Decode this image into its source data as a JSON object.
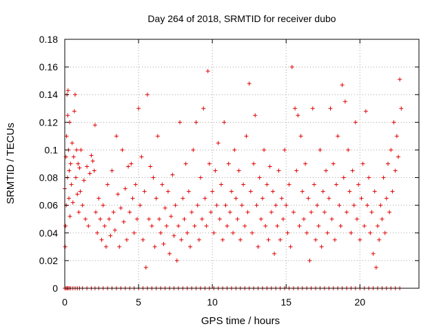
{
  "chart_data": {
    "type": "scatter",
    "title": "Day 264 of 2018, SRMTID for receiver dubo",
    "xlabel": "GPS time / hours",
    "ylabel": "SRMTID / TECUs",
    "xlim": [
      0,
      24
    ],
    "ylim": [
      0,
      0.18
    ],
    "xticks": [
      0,
      5,
      10,
      15,
      20
    ],
    "xtick_labels": [
      "0",
      "5",
      "10",
      "15",
      "20"
    ],
    "yticks": [
      0,
      0.02,
      0.04,
      0.06,
      0.08,
      0.1,
      0.12,
      0.14,
      0.16,
      0.18
    ],
    "ytick_labels": [
      "0",
      "0.02",
      "0.04",
      "0.06",
      "0.08",
      "0.1",
      "0.12",
      "0.14",
      "0.16",
      "0.18"
    ],
    "grid": true,
    "marker": "+",
    "color": "#e00000",
    "series": [
      {
        "name": "dubo",
        "points": [
          [
            0.0,
            0.072
          ],
          [
            0.03,
            0.03
          ],
          [
            0.05,
            0.045
          ],
          [
            0.08,
            0.095
          ],
          [
            0.1,
            0.06
          ],
          [
            0.12,
            0.11
          ],
          [
            0.15,
            0.14
          ],
          [
            0.18,
            0.08
          ],
          [
            0.2,
            0.125
          ],
          [
            0.22,
            0.143
          ],
          [
            0.25,
            0.1
          ],
          [
            0.28,
            0.065
          ],
          [
            0.3,
            0.085
          ],
          [
            0.33,
            0.12
          ],
          [
            0.35,
            0.052
          ],
          [
            0.4,
            0.09
          ],
          [
            0.45,
            0.075
          ],
          [
            0.5,
            0.105
          ],
          [
            0.55,
            0.062
          ],
          [
            0.6,
            0.095
          ],
          [
            0.65,
            0.128
          ],
          [
            0.7,
            0.14
          ],
          [
            0.75,
            0.08
          ],
          [
            0.8,
            0.1
          ],
          [
            0.85,
            0.068
          ],
          [
            0.9,
            0.09
          ],
          [
            0.95,
            0.055
          ],
          [
            1.0,
            0.087
          ],
          [
            1.05,
            0.07
          ],
          [
            1.1,
            0.1
          ],
          [
            1.2,
            0.06
          ],
          [
            1.3,
            0.078
          ],
          [
            1.4,
            0.05
          ],
          [
            1.5,
            0.088
          ],
          [
            1.6,
            0.045
          ],
          [
            1.7,
            0.083
          ],
          [
            1.8,
            0.096
          ],
          [
            1.9,
            0.092
          ],
          [
            2.0,
            0.085
          ],
          [
            2.05,
            0.118
          ],
          [
            2.1,
            0.055
          ],
          [
            2.2,
            0.04
          ],
          [
            2.3,
            0.065
          ],
          [
            2.4,
            0.05
          ],
          [
            2.5,
            0.035
          ],
          [
            2.6,
            0.06
          ],
          [
            2.7,
            0.045
          ],
          [
            2.8,
            0.03
          ],
          [
            2.9,
            0.075
          ],
          [
            3.0,
            0.05
          ],
          [
            3.1,
            0.038
          ],
          [
            3.2,
            0.085
          ],
          [
            3.3,
            0.055
          ],
          [
            3.4,
            0.042
          ],
          [
            3.5,
            0.11
          ],
          [
            3.6,
            0.068
          ],
          [
            3.7,
            0.03
          ],
          [
            3.8,
            0.058
          ],
          [
            3.9,
            0.1
          ],
          [
            4.0,
            0.048
          ],
          [
            4.1,
            0.072
          ],
          [
            4.2,
            0.035
          ],
          [
            4.3,
            0.088
          ],
          [
            4.4,
            0.055
          ],
          [
            4.5,
            0.09
          ],
          [
            4.6,
            0.065
          ],
          [
            4.7,
            0.04
          ],
          [
            4.8,
            0.075
          ],
          [
            4.9,
            0.05
          ],
          [
            5.0,
            0.13
          ],
          [
            5.1,
            0.06
          ],
          [
            5.2,
            0.095
          ],
          [
            5.3,
            0.035
          ],
          [
            5.4,
            0.07
          ],
          [
            5.5,
            0.015
          ],
          [
            5.6,
            0.14
          ],
          [
            5.7,
            0.05
          ],
          [
            5.8,
            0.088
          ],
          [
            5.9,
            0.045
          ],
          [
            6.0,
            0.08
          ],
          [
            6.1,
            0.03
          ],
          [
            6.2,
            0.065
          ],
          [
            6.3,
            0.11
          ],
          [
            6.4,
            0.05
          ],
          [
            6.5,
            0.04
          ],
          [
            6.6,
            0.075
          ],
          [
            6.7,
            0.032
          ],
          [
            6.8,
            0.058
          ],
          [
            6.9,
            0.045
          ],
          [
            7.0,
            0.07
          ],
          [
            7.1,
            0.025
          ],
          [
            7.2,
            0.052
          ],
          [
            7.3,
            0.082
          ],
          [
            7.4,
            0.038
          ],
          [
            7.5,
            0.06
          ],
          [
            7.6,
            0.02
          ],
          [
            7.7,
            0.045
          ],
          [
            7.8,
            0.12
          ],
          [
            7.9,
            0.035
          ],
          [
            8.0,
            0.065
          ],
          [
            8.1,
            0.05
          ],
          [
            8.2,
            0.09
          ],
          [
            8.3,
            0.04
          ],
          [
            8.4,
            0.07
          ],
          [
            8.5,
            0.03
          ],
          [
            8.6,
            0.055
          ],
          [
            8.7,
            0.1
          ],
          [
            8.8,
            0.045
          ],
          [
            8.9,
            0.12
          ],
          [
            9.0,
            0.06
          ],
          [
            9.1,
            0.035
          ],
          [
            9.2,
            0.08
          ],
          [
            9.3,
            0.05
          ],
          [
            9.4,
            0.13
          ],
          [
            9.5,
            0.065
          ],
          [
            9.6,
            0.045
          ],
          [
            9.7,
            0.157
          ],
          [
            9.8,
            0.09
          ],
          [
            9.9,
            0.055
          ],
          [
            10.0,
            0.07
          ],
          [
            10.1,
            0.04
          ],
          [
            10.2,
            0.085
          ],
          [
            10.3,
            0.06
          ],
          [
            10.4,
            0.105
          ],
          [
            10.5,
            0.05
          ],
          [
            10.6,
            0.075
          ],
          [
            10.7,
            0.035
          ],
          [
            10.8,
            0.12
          ],
          [
            10.9,
            0.06
          ],
          [
            11.0,
            0.045
          ],
          [
            11.1,
            0.09
          ],
          [
            11.2,
            0.055
          ],
          [
            11.3,
            0.07
          ],
          [
            11.4,
            0.04
          ],
          [
            11.5,
            0.1
          ],
          [
            11.6,
            0.065
          ],
          [
            11.7,
            0.05
          ],
          [
            11.8,
            0.085
          ],
          [
            11.9,
            0.035
          ],
          [
            12.0,
            0.06
          ],
          [
            12.1,
            0.075
          ],
          [
            12.2,
            0.045
          ],
          [
            12.3,
            0.11
          ],
          [
            12.4,
            0.055
          ],
          [
            12.5,
            0.148
          ],
          [
            12.6,
            0.07
          ],
          [
            12.7,
            0.04
          ],
          [
            12.8,
            0.09
          ],
          [
            12.9,
            0.125
          ],
          [
            13.0,
            0.06
          ],
          [
            13.1,
            0.03
          ],
          [
            13.2,
            0.08
          ],
          [
            13.3,
            0.05
          ],
          [
            13.4,
            0.065
          ],
          [
            13.5,
            0.1
          ],
          [
            13.6,
            0.045
          ],
          [
            13.7,
            0.075
          ],
          [
            13.8,
            0.035
          ],
          [
            13.9,
            0.088
          ],
          [
            14.0,
            0.055
          ],
          [
            14.1,
            0.07
          ],
          [
            14.2,
            0.025
          ],
          [
            14.3,
            0.06
          ],
          [
            14.4,
            0.045
          ],
          [
            14.5,
            0.085
          ],
          [
            14.6,
            0.035
          ],
          [
            14.7,
            0.065
          ],
          [
            14.8,
            0.05
          ],
          [
            14.9,
            0.1
          ],
          [
            15.0,
            0.06
          ],
          [
            15.1,
            0.04
          ],
          [
            15.2,
            0.075
          ],
          [
            15.3,
            0.03
          ],
          [
            15.4,
            0.16
          ],
          [
            15.5,
            0.055
          ],
          [
            15.6,
            0.13
          ],
          [
            15.7,
            0.085
          ],
          [
            15.8,
            0.125
          ],
          [
            15.9,
            0.045
          ],
          [
            16.0,
            0.11
          ],
          [
            16.1,
            0.07
          ],
          [
            16.2,
            0.05
          ],
          [
            16.3,
            0.09
          ],
          [
            16.4,
            0.04
          ],
          [
            16.5,
            0.065
          ],
          [
            16.6,
            0.02
          ],
          [
            16.7,
            0.055
          ],
          [
            16.8,
            0.13
          ],
          [
            16.9,
            0.075
          ],
          [
            17.0,
            0.035
          ],
          [
            17.1,
            0.06
          ],
          [
            17.2,
            0.045
          ],
          [
            17.3,
            0.1
          ],
          [
            17.4,
            0.03
          ],
          [
            17.5,
            0.07
          ],
          [
            17.6,
            0.055
          ],
          [
            17.7,
            0.085
          ],
          [
            17.8,
            0.04
          ],
          [
            17.9,
            0.065
          ],
          [
            18.0,
            0.13
          ],
          [
            18.1,
            0.05
          ],
          [
            18.2,
            0.09
          ],
          [
            18.3,
            0.035
          ],
          [
            18.4,
            0.075
          ],
          [
            18.5,
            0.11
          ],
          [
            18.6,
            0.06
          ],
          [
            18.7,
            0.045
          ],
          [
            18.8,
            0.147
          ],
          [
            18.9,
            0.08
          ],
          [
            19.0,
            0.135
          ],
          [
            19.1,
            0.055
          ],
          [
            19.2,
            0.1
          ],
          [
            19.3,
            0.07
          ],
          [
            19.4,
            0.04
          ],
          [
            19.5,
            0.085
          ],
          [
            19.6,
            0.06
          ],
          [
            19.7,
            0.12
          ],
          [
            19.8,
            0.05
          ],
          [
            19.9,
            0.075
          ],
          [
            20.0,
            0.035
          ],
          [
            20.1,
            0.065
          ],
          [
            20.2,
            0.09
          ],
          [
            20.3,
            0.045
          ],
          [
            20.4,
            0.128
          ],
          [
            20.5,
            0.06
          ],
          [
            20.6,
            0.08
          ],
          [
            20.7,
            0.04
          ],
          [
            20.8,
            0.055
          ],
          [
            20.9,
            0.025
          ],
          [
            21.0,
            0.07
          ],
          [
            21.1,
            0.015
          ],
          [
            21.2,
            0.045
          ],
          [
            21.3,
            0.035
          ],
          [
            21.4,
            0.06
          ],
          [
            21.5,
            0.05
          ],
          [
            21.6,
            0.08
          ],
          [
            21.7,
            0.04
          ],
          [
            21.8,
            0.065
          ],
          [
            21.9,
            0.09
          ],
          [
            22.0,
            0.055
          ],
          [
            22.1,
            0.1
          ],
          [
            22.2,
            0.07
          ],
          [
            22.3,
            0.12
          ],
          [
            22.4,
            0.085
          ],
          [
            22.5,
            0.11
          ],
          [
            22.6,
            0.095
          ],
          [
            22.7,
            0.151
          ],
          [
            22.8,
            0.13
          ]
        ]
      }
    ]
  }
}
